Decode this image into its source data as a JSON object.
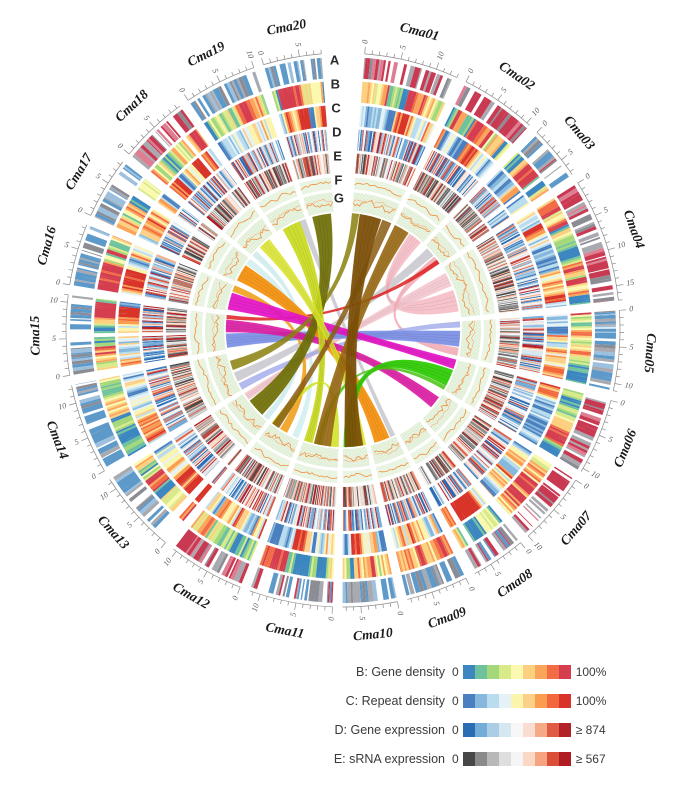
{
  "figure": {
    "background": "#ffffff"
  },
  "chart_data": {
    "type": "circos",
    "description": "Circular genome overview: 20 chromosomes Cma01-Cma20 with concentric tracks A-G (marker bars, gene density, repeat density, gene expression, sRNA expression, two line tracks) and central synteny ribbons",
    "track_letters": [
      "A",
      "B",
      "C",
      "D",
      "E",
      "F",
      "G"
    ],
    "tick": {
      "minor_mb": 1,
      "major_mb": 5
    },
    "chromosomes": [
      {
        "name": "Cma01",
        "length_mb": 13.0,
        "a_type": "red"
      },
      {
        "name": "Cma02",
        "length_mb": 10.5,
        "a_type": "red"
      },
      {
        "name": "Cma03",
        "length_mb": 7.5,
        "a_type": "mixed"
      },
      {
        "name": "Cma04",
        "length_mb": 17.0,
        "a_type": "red"
      },
      {
        "name": "Cma05",
        "length_mb": 11.0,
        "a_type": "blue"
      },
      {
        "name": "Cma06",
        "length_mb": 10.5,
        "a_type": "red"
      },
      {
        "name": "Cma07",
        "length_mb": 10.0,
        "a_type": "red"
      },
      {
        "name": "Cma08",
        "length_mb": 7.5,
        "a_type": "mixed"
      },
      {
        "name": "Cma09",
        "length_mb": 8.5,
        "a_type": "blue"
      },
      {
        "name": "Cma10",
        "length_mb": 7.5,
        "a_type": "blue"
      },
      {
        "name": "Cma11",
        "length_mb": 11.5,
        "a_type": "mixed"
      },
      {
        "name": "Cma12",
        "length_mb": 10.5,
        "a_type": "red"
      },
      {
        "name": "Cma13",
        "length_mb": 11.5,
        "a_type": "blue"
      },
      {
        "name": "Cma14",
        "length_mb": 12.5,
        "a_type": "blue"
      },
      {
        "name": "Cma15",
        "length_mb": 11.0,
        "a_type": "blue"
      },
      {
        "name": "Cma16",
        "length_mb": 8.5,
        "a_type": "blue"
      },
      {
        "name": "Cma17",
        "length_mb": 8.5,
        "a_type": "blue"
      },
      {
        "name": "Cma18",
        "length_mb": 9.5,
        "a_type": "red"
      },
      {
        "name": "Cma19",
        "length_mb": 10.0,
        "a_type": "blue"
      },
      {
        "name": "Cma20",
        "length_mb": 8.0,
        "a_type": "blue"
      }
    ],
    "palettes": {
      "trackA_red": [
        "#c93a52",
        "#de7e92",
        "#a9a9b0",
        "#8c8c94",
        "#ffffff"
      ],
      "trackA_blue": [
        "#5e9ac9",
        "#9cc0dd",
        "#a9a9b0",
        "#8c8c94",
        "#ffffff"
      ],
      "trackA_mixed": [
        "#c93a52",
        "#5e9ac9",
        "#a9a9b0",
        "#8c8c94",
        "#ffffff"
      ],
      "gene_density": [
        "#3c87c0",
        "#6ec29c",
        "#a4d87a",
        "#d8ea8a",
        "#fbf8b0",
        "#fcd07e",
        "#fba55b",
        "#f26d45",
        "#d53e4f"
      ],
      "repeat_density": [
        "#4a80c0",
        "#85b8dc",
        "#b9dcee",
        "#e4f1f7",
        "#fbf4ad",
        "#fcd089",
        "#fb9d51",
        "#f0683c",
        "#d93429"
      ],
      "gene_expression": [
        "#2a6cb4",
        "#74acd8",
        "#accee5",
        "#d5e7f1",
        "#f7f7f7",
        "#f9ddd0",
        "#f5a987",
        "#df5b44",
        "#b22028"
      ],
      "srna_expression": [
        "#474747",
        "#8a8a8a",
        "#b8b8b8",
        "#dedede",
        "#f5f5f5",
        "#fbd8c4",
        "#f5a380",
        "#d94f38",
        "#b01c24"
      ],
      "line_track_bg": "#eaf4e2",
      "line_track_hatch": "#d5e8ca",
      "line_color": "#ef8f3c",
      "line_color_2": "#f3b27a",
      "axis_color": "#8a8a8a",
      "name_color": "#1a1a1a",
      "tick_label_color": "#5a5a5a"
    },
    "ribbons": [
      {
        "from": "Cma17",
        "f": [
          6.5,
          8.5
        ],
        "to": "Cma12",
        "t": [
          0.5,
          2.5
        ],
        "color": "#d3eef0",
        "op": 0.9
      },
      {
        "from": "Cma18",
        "f": [
          0,
          1.8
        ],
        "to": "Cma13",
        "t": [
          0,
          1.8
        ],
        "color": "#cdeaec",
        "op": 0.85
      },
      {
        "from": "Cma03",
        "f": [
          1,
          4
        ],
        "to": "Cma14",
        "t": [
          3,
          6
        ],
        "color": "#c6c6cc",
        "op": 0.85
      },
      {
        "from": "Cma09",
        "f": [
          0,
          1.5
        ],
        "to": "Cma19",
        "t": [
          8,
          10
        ],
        "color": "#c2c2ca",
        "op": 0.8
      },
      {
        "from": "Cma04",
        "f": [
          8,
          15
        ],
        "to": "Cma02",
        "t": [
          5.5,
          10
        ],
        "color": "#f5bdc5",
        "op": 0.9
      },
      {
        "from": "Cma04",
        "f": [
          2,
          6.5
        ],
        "to": "Cma13",
        "t": [
          9,
          11.4
        ],
        "color": "#f3c3cb",
        "op": 0.85
      },
      {
        "from": "Cma05",
        "f": [
          8.5,
          11
        ],
        "to": "Cma03",
        "t": [
          4.5,
          7
        ],
        "color": "#f0a8b2",
        "op": 0.85
      },
      {
        "from": "Cma05",
        "f": [
          0,
          1.8
        ],
        "to": "Cma14",
        "t": [
          0,
          2.2
        ],
        "color": "#9fa9ea",
        "op": 0.8
      },
      {
        "from": "Cma15",
        "f": [
          0.5,
          5
        ],
        "to": "Cma05",
        "t": [
          3,
          8
        ],
        "color": "#7d91e6",
        "op": 0.95
      },
      {
        "from": "Cma03",
        "f": [
          5.8,
          7.2
        ],
        "to": "Cma15",
        "t": [
          9.8,
          11
        ],
        "color": "#de2020",
        "op": 0.85
      },
      {
        "from": "Cma17",
        "f": [
          0.5,
          6
        ],
        "to": "Cma09",
        "t": [
          2,
          7
        ],
        "color": "#f39110",
        "op": 0.95
      },
      {
        "from": "Cma16",
        "f": [
          6.5,
          8.5
        ],
        "to": "Cma12",
        "t": [
          4.5,
          7
        ],
        "color": "#f0a01c",
        "op": 0.9
      },
      {
        "from": "Cma16",
        "f": [
          0.5,
          6
        ],
        "to": "Cma06",
        "t": [
          0,
          3
        ],
        "color": "#e516c6",
        "op": 0.95
      },
      {
        "from": "Cma15",
        "f": [
          5.5,
          9.5
        ],
        "to": "Cma07",
        "t": [
          1.5,
          5.5
        ],
        "color": "#db17a2",
        "op": 0.9
      },
      {
        "from": "Cma01",
        "f": [
          0,
          2.2
        ],
        "to": "Cma14",
        "t": [
          7,
          10
        ],
        "color": "#8a800c",
        "op": 0.85
      },
      {
        "from": "Cma20",
        "f": [
          1,
          7
        ],
        "to": "Cma13",
        "t": [
          2.5,
          8.5
        ],
        "color": "#6e6e04",
        "op": 0.92
      },
      {
        "from": "Cma19",
        "f": [
          2,
          8
        ],
        "to": "Cma11",
        "t": [
          8.5,
          11.3
        ],
        "color": "#c9da1e",
        "op": 0.92
      },
      {
        "from": "Cma18",
        "f": [
          3.5,
          7.5
        ],
        "to": "Cma10",
        "t": [
          0,
          2.8
        ],
        "color": "#d9e42c",
        "op": 0.88
      },
      {
        "from": "Cma11",
        "f": [
          0,
          2.8
        ],
        "to": "Cma12",
        "t": [
          8,
          10.3
        ],
        "color": "#cfe01f",
        "op": 0.85
      },
      {
        "from": "Cma06",
        "f": [
          3.5,
          9
        ],
        "to": "Cma10",
        "t": [
          3,
          7.2
        ],
        "color": "#2fcc05",
        "op": 0.95
      },
      {
        "from": "Cma06",
        "f": [
          9.2,
          10.4
        ],
        "to": "Cma11",
        "t": [
          5.5,
          7.5
        ],
        "color": "#49c214",
        "op": 0.85
      },
      {
        "from": "Cma02",
        "f": [
          0,
          5
        ],
        "to": "Cma11",
        "t": [
          2.5,
          8
        ],
        "color": "#96660f",
        "op": 0.9
      },
      {
        "from": "Cma01",
        "f": [
          10,
          13
        ],
        "to": "Cma12",
        "t": [
          7.5,
          10
        ],
        "color": "#8a5a10",
        "op": 0.85
      },
      {
        "from": "Cma01",
        "f": [
          2.5,
          9.5
        ],
        "to": "Cma10",
        "t": [
          1,
          6.8
        ],
        "color": "#7c5008",
        "op": 0.95
      }
    ],
    "legend": {
      "rows": [
        {
          "label": "B: Gene density",
          "min": "0",
          "max": "100%",
          "palette": "gene_density"
        },
        {
          "label": "C: Repeat density",
          "min": "0",
          "max": "100%",
          "palette": "repeat_density"
        },
        {
          "label": "D: Gene expression",
          "min": "0",
          "max": "≥ 874",
          "palette": "gene_expression"
        },
        {
          "label": "E: sRNA expression",
          "min": "0",
          "max": "≥ 567",
          "palette": "srna_expression"
        }
      ]
    }
  }
}
